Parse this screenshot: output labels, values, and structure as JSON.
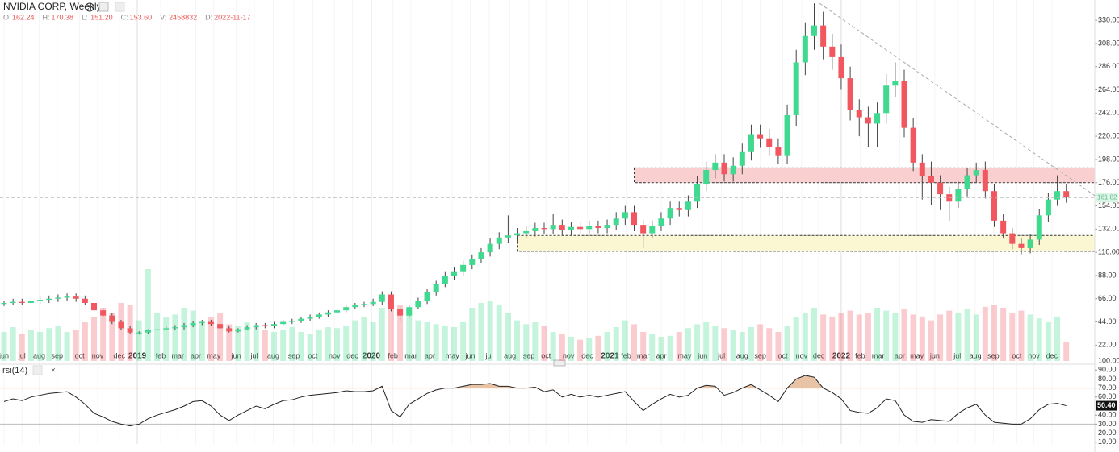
{
  "header": {
    "title": "NVIDIA CORP, Weekly",
    "ohlc": [
      {
        "label": "O:",
        "value": "162.24"
      },
      {
        "label": "H:",
        "value": "170.38"
      },
      {
        "label": "L:",
        "value": "151.20"
      },
      {
        "label": "C:",
        "value": "153.60"
      },
      {
        "label": "V:",
        "value": "2458832"
      },
      {
        "label": "D:",
        "value": "2022-11-17"
      }
    ]
  },
  "chart_data": {
    "type": "candlestick",
    "up_color": "#3fd98f",
    "down_color": "#f2575f",
    "ylim": [
      7,
      340
    ],
    "yticks": [
      {
        "value": 330,
        "label": "330.00"
      },
      {
        "value": 308,
        "label": "308.00"
      },
      {
        "value": 286,
        "label": "286.00"
      },
      {
        "value": 264,
        "label": "264.00"
      },
      {
        "value": 242,
        "label": "242.00"
      },
      {
        "value": 220,
        "label": "220.00"
      },
      {
        "value": 198,
        "label": "198.00"
      },
      {
        "value": 176,
        "label": "176.00"
      },
      {
        "value": 154,
        "label": "154.00"
      },
      {
        "value": 132,
        "label": "132.00"
      },
      {
        "value": 110,
        "label": "110.00"
      },
      {
        "value": 88,
        "label": "88.00"
      },
      {
        "value": 66,
        "label": "66.00"
      },
      {
        "value": 44,
        "label": "44.00"
      },
      {
        "value": 22,
        "label": "22.00"
      }
    ],
    "volume_scale_label": "100.00",
    "last_price": 161.82,
    "xticks": [
      {
        "value": 0,
        "label": "jun"
      },
      {
        "value": 2.0,
        "label": "jul"
      },
      {
        "value": 3.9,
        "label": "aug"
      },
      {
        "value": 5.9,
        "label": "sep"
      },
      {
        "value": 8.4,
        "label": "oct"
      },
      {
        "value": 10.4,
        "label": "nov"
      },
      {
        "value": 12.8,
        "label": "dec"
      },
      {
        "value": 14.8,
        "label": "2019"
      },
      {
        "value": 17.4,
        "label": "feb"
      },
      {
        "value": 19.3,
        "label": "mar"
      },
      {
        "value": 21.3,
        "label": "apr"
      },
      {
        "value": 23.3,
        "label": "may"
      },
      {
        "value": 25.8,
        "label": "jun"
      },
      {
        "value": 27.8,
        "label": "jul"
      },
      {
        "value": 29.9,
        "label": "aug"
      },
      {
        "value": 32.2,
        "label": "sep"
      },
      {
        "value": 34.3,
        "label": "oct"
      },
      {
        "value": 36.7,
        "label": "nov"
      },
      {
        "value": 38.7,
        "label": "dec"
      },
      {
        "value": 40.8,
        "label": "2020"
      },
      {
        "value": 43.2,
        "label": "feb"
      },
      {
        "value": 45.2,
        "label": "mar"
      },
      {
        "value": 47.3,
        "label": "apr"
      },
      {
        "value": 49.8,
        "label": "may"
      },
      {
        "value": 51.8,
        "label": "jun"
      },
      {
        "value": 53.9,
        "label": "jul"
      },
      {
        "value": 56.2,
        "label": "aug"
      },
      {
        "value": 58.3,
        "label": "sep"
      },
      {
        "value": 60.2,
        "label": "oct"
      },
      {
        "value": 62.7,
        "label": "nov"
      },
      {
        "value": 64.8,
        "label": "dec"
      },
      {
        "value": 67.3,
        "label": "2021"
      },
      {
        "value": 69.1,
        "label": "feb"
      },
      {
        "value": 71.0,
        "label": "mar"
      },
      {
        "value": 73.0,
        "label": "apr"
      },
      {
        "value": 75.6,
        "label": "may"
      },
      {
        "value": 77.6,
        "label": "jun"
      },
      {
        "value": 79.7,
        "label": "jul"
      },
      {
        "value": 82.0,
        "label": "aug"
      },
      {
        "value": 84.0,
        "label": "sep"
      },
      {
        "value": 86.5,
        "label": "oct"
      },
      {
        "value": 88.6,
        "label": "nov"
      },
      {
        "value": 90.5,
        "label": "dec"
      },
      {
        "value": 93.0,
        "label": "2022"
      },
      {
        "value": 95.1,
        "label": "feb"
      },
      {
        "value": 97.1,
        "label": "mar"
      },
      {
        "value": 99.5,
        "label": "apr"
      },
      {
        "value": 101.4,
        "label": "may"
      },
      {
        "value": 103.4,
        "label": "jun"
      },
      {
        "value": 105.9,
        "label": "jul"
      },
      {
        "value": 107.9,
        "label": "aug"
      },
      {
        "value": 109.9,
        "label": "sep"
      },
      {
        "value": 112.5,
        "label": "oct"
      },
      {
        "value": 114.4,
        "label": "nov"
      },
      {
        "value": 116.4,
        "label": "dec"
      }
    ],
    "open": [
      61,
      62,
      63,
      62,
      64,
      65,
      66,
      67,
      68,
      66,
      62,
      55,
      50,
      44,
      38,
      34,
      34,
      36,
      37,
      38,
      39,
      41,
      43,
      44,
      42,
      38,
      35,
      37,
      39,
      41,
      40,
      42,
      44,
      45,
      47,
      49,
      51,
      53,
      55,
      58,
      60,
      61,
      63,
      70,
      56,
      50,
      58,
      64,
      72,
      80,
      88,
      92,
      98,
      104,
      110,
      118,
      124,
      126,
      128,
      130,
      133,
      132,
      136,
      131,
      134,
      132,
      135,
      133,
      136,
      142,
      148,
      136,
      128,
      135,
      142,
      152,
      150,
      158,
      175,
      188,
      195,
      184,
      192,
      205,
      222,
      218,
      210,
      202,
      240,
      290,
      315,
      325,
      305,
      295,
      275,
      245,
      238,
      232,
      242,
      268,
      272,
      228,
      195,
      182,
      176,
      165,
      158,
      170,
      183,
      188,
      168,
      140,
      128,
      118,
      114,
      122,
      145,
      160,
      168
    ],
    "high": [
      64,
      66,
      66,
      67,
      68,
      69,
      70,
      71,
      71,
      69,
      64,
      57,
      52,
      46,
      40,
      35,
      37,
      38,
      40,
      41,
      43,
      45,
      46,
      46,
      44,
      40,
      38,
      41,
      43,
      43,
      44,
      46,
      47,
      49,
      51,
      53,
      55,
      57,
      60,
      62,
      63,
      66,
      73,
      73,
      58,
      60,
      67,
      75,
      83,
      92,
      96,
      102,
      108,
      114,
      123,
      129,
      145,
      133,
      135,
      138,
      138,
      146,
      141,
      139,
      139,
      140,
      140,
      141,
      148,
      154,
      154,
      141,
      140,
      148,
      158,
      158,
      164,
      182,
      196,
      203,
      203,
      200,
      213,
      231,
      231,
      227,
      218,
      250,
      302,
      328,
      346,
      338,
      317,
      307,
      286,
      255,
      248,
      252,
      279,
      290,
      283,
      237,
      203,
      196,
      183,
      172,
      177,
      190,
      195,
      196,
      175,
      146,
      133,
      123,
      127,
      151,
      166,
      183,
      175
    ],
    "low": [
      59,
      60,
      60,
      60,
      61,
      62,
      63,
      64,
      63,
      60,
      53,
      48,
      42,
      36,
      33,
      32,
      33,
      35,
      36,
      36,
      37,
      39,
      41,
      40,
      36,
      34,
      34,
      36,
      37,
      38,
      38,
      40,
      42,
      43,
      45,
      47,
      49,
      51,
      53,
      56,
      58,
      59,
      60,
      54,
      45,
      48,
      56,
      61,
      69,
      77,
      84,
      88,
      94,
      100,
      106,
      113,
      119,
      118,
      123,
      125,
      127,
      127,
      126,
      126,
      127,
      127,
      128,
      128,
      131,
      136,
      130,
      114,
      123,
      130,
      136,
      144,
      144,
      152,
      168,
      180,
      177,
      177,
      184,
      197,
      209,
      202,
      194,
      194,
      230,
      278,
      302,
      293,
      283,
      264,
      235,
      220,
      210,
      210,
      232,
      257,
      219,
      187,
      160,
      155,
      150,
      140,
      152,
      163,
      176,
      161,
      134,
      123,
      113,
      108,
      109,
      117,
      139,
      154,
      157
    ],
    "close": [
      62,
      63,
      62,
      64,
      65,
      66,
      67,
      68,
      66,
      62,
      55,
      50,
      44,
      38,
      34,
      34,
      36,
      37,
      38,
      39,
      41,
      43,
      44,
      42,
      38,
      35,
      37,
      39,
      41,
      40,
      42,
      44,
      45,
      47,
      49,
      51,
      53,
      55,
      58,
      60,
      61,
      63,
      70,
      56,
      50,
      58,
      64,
      72,
      80,
      88,
      92,
      98,
      104,
      110,
      118,
      124,
      126,
      128,
      130,
      133,
      132,
      136,
      131,
      134,
      132,
      135,
      133,
      136,
      142,
      148,
      136,
      128,
      135,
      142,
      152,
      150,
      158,
      175,
      188,
      195,
      184,
      192,
      205,
      222,
      218,
      210,
      202,
      240,
      290,
      315,
      325,
      305,
      295,
      275,
      245,
      238,
      232,
      242,
      268,
      272,
      228,
      195,
      182,
      176,
      165,
      158,
      170,
      183,
      188,
      168,
      140,
      128,
      118,
      114,
      122,
      145,
      160,
      168,
      162
    ],
    "volume": [
      30,
      35,
      28,
      32,
      30,
      34,
      36,
      30,
      32,
      40,
      45,
      55,
      50,
      60,
      58,
      42,
      95,
      50,
      45,
      48,
      55,
      52,
      40,
      45,
      50,
      38,
      36,
      40,
      35,
      32,
      30,
      32,
      35,
      30,
      28,
      32,
      35,
      34,
      36,
      42,
      45,
      40,
      55,
      62,
      58,
      48,
      42,
      40,
      38,
      36,
      35,
      40,
      55,
      60,
      62,
      58,
      50,
      42,
      38,
      40,
      36,
      30,
      28,
      25,
      22,
      24,
      26,
      30,
      35,
      42,
      38,
      30,
      28,
      25,
      26,
      30,
      34,
      38,
      40,
      36,
      34,
      32,
      30,
      35,
      38,
      34,
      30,
      36,
      45,
      50,
      55,
      48,
      46,
      50,
      52,
      48,
      50,
      55,
      52,
      50,
      54,
      48,
      46,
      42,
      48,
      52,
      50,
      54,
      48,
      56,
      58,
      55,
      50,
      52,
      48,
      44,
      40,
      46,
      20
    ],
    "vlim": [
      0,
      100
    ],
    "zones": [
      {
        "low": 176,
        "high": 190,
        "start": 70,
        "color": "#f9cfd0"
      },
      {
        "low": 111,
        "high": 126,
        "start": 57,
        "color": "#fbf7d3"
      }
    ],
    "trendline": {
      "x": [
        90.6,
        121.2
      ],
      "y": [
        346,
        163.5
      ]
    },
    "rsi": {
      "title": "rsi(14)",
      "ylim": [
        8,
        92
      ],
      "yticks": [
        {
          "value": 90,
          "label": "90.00"
        },
        {
          "value": 80,
          "label": "80.00"
        },
        {
          "value": 70,
          "label": "70.00"
        },
        {
          "value": 60,
          "label": "60.00"
        },
        {
          "value": 40,
          "label": "40.00"
        },
        {
          "value": 30,
          "label": "30.00"
        },
        {
          "value": 20,
          "label": "20.00"
        },
        {
          "value": 10,
          "label": "10.00"
        }
      ],
      "bands": [
        70,
        30
      ],
      "values": [
        55,
        58,
        56,
        60,
        62,
        64,
        65,
        66,
        60,
        52,
        42,
        38,
        33,
        30,
        28,
        30,
        36,
        40,
        43,
        46,
        50,
        55,
        56,
        50,
        40,
        34,
        40,
        45,
        50,
        47,
        52,
        56,
        57,
        60,
        62,
        63,
        64,
        65,
        67,
        66,
        66,
        67,
        72,
        45,
        38,
        52,
        58,
        64,
        68,
        70,
        70,
        72,
        74,
        74,
        75,
        72,
        72,
        70,
        70,
        71,
        66,
        68,
        60,
        63,
        60,
        62,
        60,
        62,
        64,
        66,
        55,
        45,
        52,
        58,
        63,
        60,
        62,
        70,
        73,
        72,
        62,
        65,
        70,
        74,
        68,
        62,
        55,
        70,
        80,
        84,
        82,
        70,
        65,
        58,
        45,
        43,
        42,
        48,
        58,
        56,
        40,
        33,
        32,
        35,
        34,
        33,
        42,
        48,
        52,
        40,
        32,
        31,
        30,
        30,
        36,
        46,
        52,
        53,
        50.4
      ],
      "last_label": "50.40"
    }
  }
}
